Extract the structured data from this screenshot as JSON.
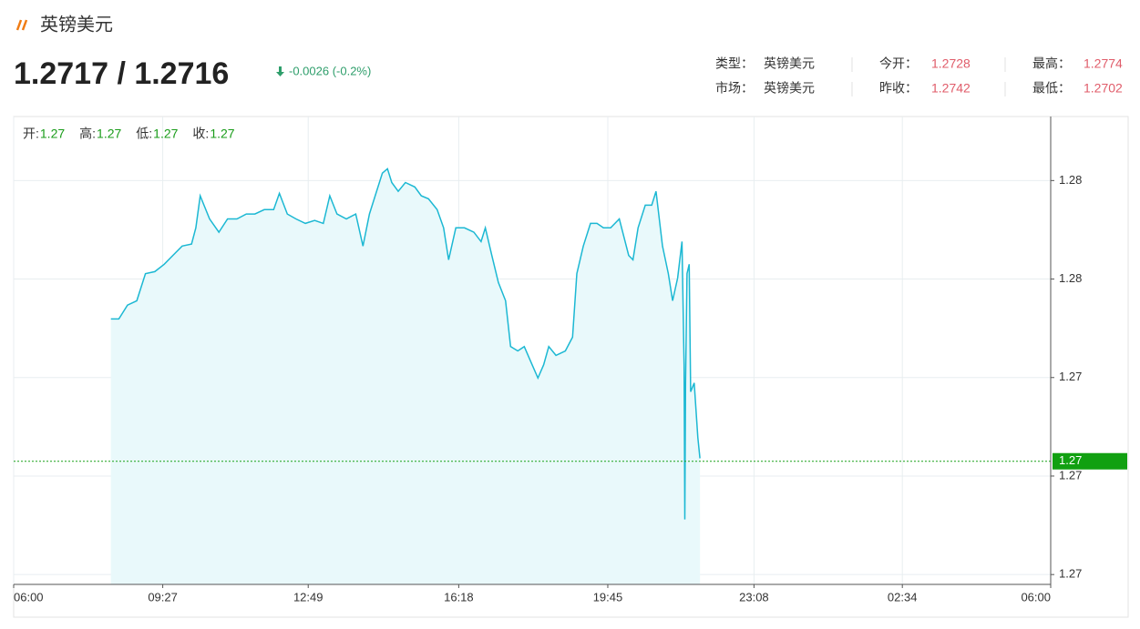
{
  "header": {
    "title": "英镑美元",
    "price": "1.2717 / 1.2716",
    "change": "-0.0026 (-0.2%)"
  },
  "info": [
    [
      {
        "label": "类型：",
        "value": "英镑美元"
      },
      {
        "label": "今开：",
        "value": 1.2728
      },
      {
        "label": "最高：",
        "value": 1.2774
      }
    ],
    [
      {
        "label": "市场：",
        "value": "英镑美元"
      },
      {
        "label": "昨收：",
        "value": 1.2742
      },
      {
        "label": "最低：",
        "value": 1.2702
      }
    ]
  ],
  "chart_data": {
    "type": "line",
    "ohlc": [
      {
        "label": "开:",
        "value": 1.27
      },
      {
        "label": "高:",
        "value": 1.27
      },
      {
        "label": "低:",
        "value": 1.27
      },
      {
        "label": "收:",
        "value": 1.27
      }
    ],
    "x": [
      135,
      146,
      158,
      171,
      183,
      196,
      209,
      221,
      234,
      247,
      253,
      259,
      272,
      285,
      297,
      310,
      323,
      335,
      348,
      361,
      369,
      380,
      392,
      405,
      418,
      430,
      439,
      449,
      462,
      475,
      485,
      494,
      502,
      512,
      519,
      525,
      534,
      544,
      557,
      566,
      576,
      588,
      597,
      604,
      614,
      626,
      639,
      649,
      655,
      664,
      673,
      683,
      690,
      700,
      709,
      717,
      728,
      736,
      743,
      753,
      766,
      776,
      782,
      791,
      801,
      810,
      819,
      829,
      841,
      854,
      860,
      867,
      877,
      886,
      892,
      901,
      909,
      915,
      922,
      928,
      931,
      932,
      933,
      935,
      938,
      940,
      945,
      950,
      953
    ],
    "series": [
      {
        "color": "#1cb8d3",
        "values": [
          1.27419,
          1.27419,
          1.27447,
          1.27456,
          1.27511,
          1.27515,
          1.2753,
          1.27548,
          1.27567,
          1.27571,
          1.27604,
          1.27669,
          1.27622,
          1.27595,
          1.27622,
          1.27622,
          1.27632,
          1.27632,
          1.27641,
          1.27641,
          1.27674,
          1.27632,
          1.27622,
          1.27613,
          1.27619,
          1.27613,
          1.27669,
          1.27632,
          1.27622,
          1.27632,
          1.27567,
          1.27632,
          1.27669,
          1.27715,
          1.27724,
          1.27696,
          1.27678,
          1.27696,
          1.27687,
          1.27669,
          1.27663,
          1.27641,
          1.27604,
          1.27539,
          1.27604,
          1.27604,
          1.27595,
          1.27576,
          1.27604,
          1.27548,
          1.27493,
          1.27456,
          1.27363,
          1.27354,
          1.27363,
          1.27336,
          1.27299,
          1.27326,
          1.27363,
          1.27345,
          1.27354,
          1.27382,
          1.27511,
          1.27567,
          1.27613,
          1.27613,
          1.27604,
          1.27604,
          1.27622,
          1.27548,
          1.27539,
          1.27604,
          1.2765,
          1.2765,
          1.27678,
          1.27567,
          1.27511,
          1.27456,
          1.27502,
          1.27576,
          1.27326,
          1.27012,
          1.27289,
          1.27511,
          1.2753,
          1.27271,
          1.27289,
          1.27178,
          1.27136
        ]
      }
    ],
    "xlim": [
      0,
      1440
    ],
    "xticks": [
      {
        "value": 0,
        "label": "06:00"
      },
      {
        "value": 207,
        "label": "09:27"
      },
      {
        "value": 409,
        "label": "12:49"
      },
      {
        "value": 618,
        "label": "16:18"
      },
      {
        "value": 825,
        "label": "19:45"
      },
      {
        "value": 1028,
        "label": "23:08"
      },
      {
        "value": 1234,
        "label": "02:34"
      },
      {
        "value": 1440,
        "label": "06:00"
      }
    ],
    "ylim": [
      1.2688,
      1.2783
    ],
    "yticks": [
      {
        "value": 1.269,
        "label": "1.27"
      },
      {
        "value": 1.271,
        "label": "1.27"
      },
      {
        "value": 1.273,
        "label": "1.27"
      },
      {
        "value": 1.275,
        "label": "1.28"
      },
      {
        "value": 1.277,
        "label": "1.28"
      }
    ],
    "last_price": {
      "value": 1.2713,
      "label": "1.27"
    },
    "grid": true
  }
}
